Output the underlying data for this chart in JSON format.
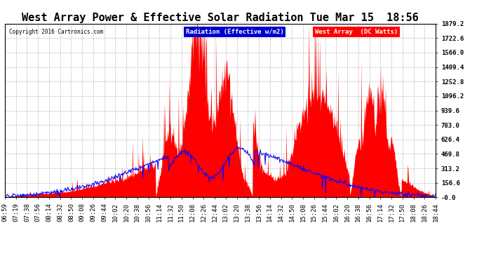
{
  "title": "West Array Power & Effective Solar Radiation Tue Mar 15  18:56",
  "copyright": "Copyright 2016 Cartronics.com",
  "legend_labels": [
    "Radiation (Effective w/m2)",
    "West Array  (DC Watts)"
  ],
  "legend_colors_bg": [
    "#0000cc",
    "#ff0000"
  ],
  "legend_text_color": "white",
  "yticks": [
    0.0,
    156.6,
    313.2,
    469.8,
    626.4,
    783.0,
    939.6,
    1096.2,
    1252.8,
    1409.4,
    1566.0,
    1722.6,
    1879.2
  ],
  "ytick_labels": [
    "-0.0",
    "156.6",
    "313.2",
    "469.8",
    "626.4",
    "783.0",
    "939.6",
    "1096.2",
    "1252.8",
    "1409.4",
    "1566.0",
    "1722.6",
    "1879.2"
  ],
  "ylim": [
    0.0,
    1879.2
  ],
  "background_color": "#ffffff",
  "plot_bg_color": "#ffffff",
  "grid_color": "#aaaaaa",
  "title_fontsize": 11,
  "axis_fontsize": 6.5,
  "xtick_labels": [
    "06:59",
    "07:19",
    "07:38",
    "07:56",
    "08:14",
    "08:32",
    "08:50",
    "09:08",
    "09:26",
    "09:44",
    "10:02",
    "10:20",
    "10:38",
    "10:56",
    "11:14",
    "11:32",
    "11:50",
    "12:08",
    "12:26",
    "12:44",
    "13:02",
    "13:20",
    "13:38",
    "13:56",
    "14:14",
    "14:32",
    "14:50",
    "15:08",
    "15:26",
    "15:44",
    "16:02",
    "16:20",
    "16:38",
    "16:56",
    "17:14",
    "17:32",
    "17:50",
    "18:08",
    "18:26",
    "18:44"
  ],
  "n_ticks": 40,
  "red_seed": 123,
  "blue_seed": 456
}
